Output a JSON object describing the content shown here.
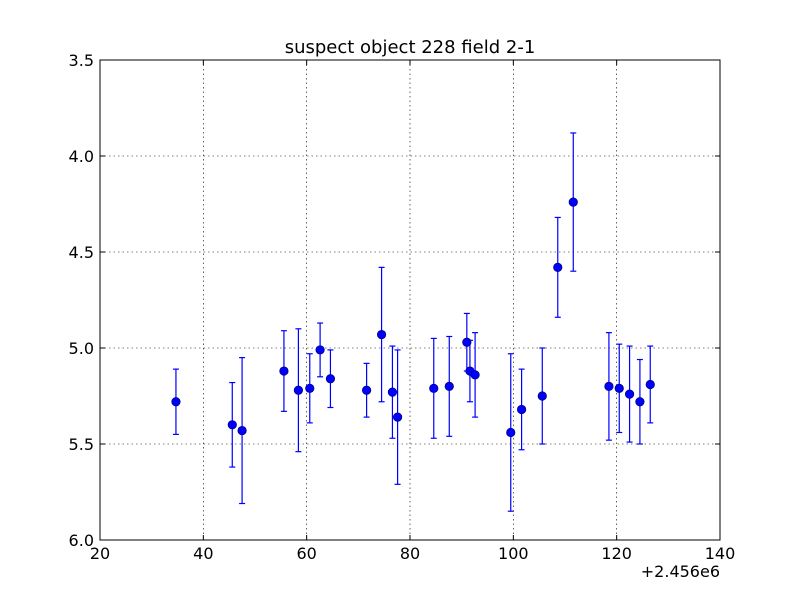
{
  "chart_data": {
    "type": "scatter",
    "title": "suspect object 228 field 2-1",
    "x_offset_label": "+2.456e6",
    "xlabel": "",
    "ylabel": "",
    "xlim": [
      20,
      140
    ],
    "ylim": [
      6.0,
      3.5
    ],
    "y_inverted": true,
    "grid": true,
    "xticks": [
      20,
      40,
      60,
      80,
      100,
      120,
      140
    ],
    "xtick_labels": [
      "20",
      "40",
      "60",
      "80",
      "100",
      "120",
      "140"
    ],
    "yticks": [
      3.5,
      4.0,
      4.5,
      5.0,
      5.5,
      6.0
    ],
    "ytick_labels": [
      "3.5",
      "4.0",
      "4.5",
      "5.0",
      "5.5",
      "6.0"
    ],
    "marker_color": "#0000ff",
    "errorbar_color": "#0000ff",
    "points": [
      {
        "x": 34.7,
        "y": 5.28,
        "err": 0.17
      },
      {
        "x": 45.6,
        "y": 5.4,
        "err": 0.22
      },
      {
        "x": 47.5,
        "y": 5.43,
        "err": 0.38
      },
      {
        "x": 55.6,
        "y": 5.12,
        "err": 0.21
      },
      {
        "x": 58.4,
        "y": 5.22,
        "err": 0.32
      },
      {
        "x": 60.6,
        "y": 5.21,
        "err": 0.18
      },
      {
        "x": 62.6,
        "y": 5.01,
        "err": 0.14
      },
      {
        "x": 64.6,
        "y": 5.16,
        "err": 0.15
      },
      {
        "x": 71.6,
        "y": 5.22,
        "err": 0.14
      },
      {
        "x": 74.5,
        "y": 4.93,
        "err": 0.35
      },
      {
        "x": 76.6,
        "y": 5.23,
        "err": 0.24
      },
      {
        "x": 77.6,
        "y": 5.36,
        "err": 0.35
      },
      {
        "x": 84.6,
        "y": 5.21,
        "err": 0.26
      },
      {
        "x": 87.6,
        "y": 5.2,
        "err": 0.26
      },
      {
        "x": 91.0,
        "y": 4.97,
        "err": 0.15
      },
      {
        "x": 91.6,
        "y": 5.12,
        "err": 0.16
      },
      {
        "x": 92.6,
        "y": 5.14,
        "err": 0.22
      },
      {
        "x": 99.5,
        "y": 5.44,
        "err": 0.41
      },
      {
        "x": 101.6,
        "y": 5.32,
        "err": 0.21
      },
      {
        "x": 105.6,
        "y": 5.25,
        "err": 0.25
      },
      {
        "x": 108.6,
        "y": 4.58,
        "err": 0.26
      },
      {
        "x": 111.6,
        "y": 4.24,
        "err": 0.36
      },
      {
        "x": 118.5,
        "y": 5.2,
        "err": 0.28
      },
      {
        "x": 120.5,
        "y": 5.21,
        "err": 0.23
      },
      {
        "x": 122.5,
        "y": 5.24,
        "err": 0.25
      },
      {
        "x": 124.5,
        "y": 5.28,
        "err": 0.22
      },
      {
        "x": 126.5,
        "y": 5.19,
        "err": 0.2
      }
    ]
  }
}
